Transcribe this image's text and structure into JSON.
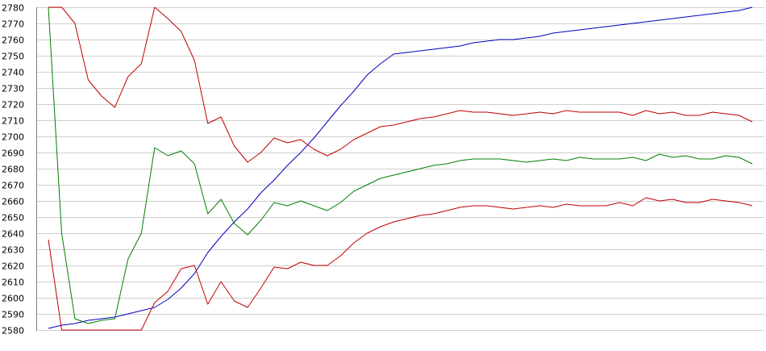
{
  "chart_data": {
    "type": "line",
    "title": "",
    "xlabel": "",
    "ylabel": "",
    "ylim": [
      2580,
      2780
    ],
    "y_ticks": [
      2580,
      2590,
      2600,
      2610,
      2620,
      2630,
      2640,
      2650,
      2660,
      2670,
      2680,
      2690,
      2700,
      2710,
      2720,
      2730,
      2740,
      2750,
      2760,
      2770,
      2780
    ],
    "grid": true,
    "legend": "none",
    "colors": {
      "blue": "#0000c0",
      "green": "#008000",
      "red": "#c00000",
      "grid": "#cfcfcf",
      "axis": "#808080"
    },
    "series": [
      {
        "color": "#0000c0",
        "values": [
          2581,
          2583,
          2584,
          2586,
          2587,
          2588,
          2590,
          2592,
          2594,
          2599,
          2606,
          2615,
          2628,
          2638,
          2647,
          2655,
          2665,
          2673,
          2682,
          2690,
          2699,
          2709,
          2719,
          2728,
          2738,
          2745,
          2751,
          2752,
          2753,
          2754,
          2755,
          2756,
          2758,
          2759,
          2760,
          2760,
          2761,
          2762,
          2764,
          2765,
          2766,
          2767,
          2768,
          2769,
          2770,
          2771,
          2772,
          2773,
          2774,
          2775,
          2776,
          2777,
          2778,
          2780
        ]
      },
      {
        "color": "#008000",
        "values": [
          2780,
          2640,
          2587,
          2584,
          2586,
          2587,
          2624,
          2640,
          2693,
          2688,
          2691,
          2683,
          2652,
          2661,
          2646,
          2639,
          2648,
          2659,
          2657,
          2660,
          2657,
          2654,
          2659,
          2666,
          2670,
          2674,
          2676,
          2678,
          2680,
          2682,
          2683,
          2685,
          2686,
          2686,
          2686,
          2685,
          2684,
          2685,
          2686,
          2685,
          2687,
          2686,
          2686,
          2686,
          2687,
          2685,
          2689,
          2687,
          2688,
          2686,
          2686,
          2688,
          2687,
          2683
        ]
      },
      {
        "color": "#c00000",
        "values": [
          2780,
          2780,
          2770,
          2735,
          2725,
          2718,
          2737,
          2745,
          2780,
          2773,
          2765,
          2747,
          2708,
          2712,
          2694,
          2684,
          2690,
          2699,
          2696,
          2698,
          2692,
          2688,
          2692,
          2698,
          2702,
          2706,
          2707,
          2709,
          2711,
          2712,
          2714,
          2716,
          2715,
          2715,
          2714,
          2713,
          2714,
          2715,
          2714,
          2716,
          2715,
          2715,
          2715,
          2715,
          2713,
          2716,
          2714,
          2715,
          2713,
          2713,
          2715,
          2714,
          2713,
          2709
        ]
      },
      {
        "color": "#c00000",
        "values": [
          2636,
          2580,
          2580,
          2580,
          2580,
          2580,
          2580,
          2580,
          2597,
          2604,
          2618,
          2620,
          2596,
          2610,
          2598,
          2594,
          2606,
          2619,
          2618,
          2622,
          2620,
          2620,
          2626,
          2634,
          2640,
          2644,
          2647,
          2649,
          2651,
          2652,
          2654,
          2656,
          2657,
          2657,
          2656,
          2655,
          2656,
          2657,
          2656,
          2658,
          2657,
          2657,
          2657,
          2659,
          2657,
          2662,
          2660,
          2661,
          2659,
          2659,
          2661,
          2660,
          2659,
          2657
        ]
      }
    ]
  }
}
